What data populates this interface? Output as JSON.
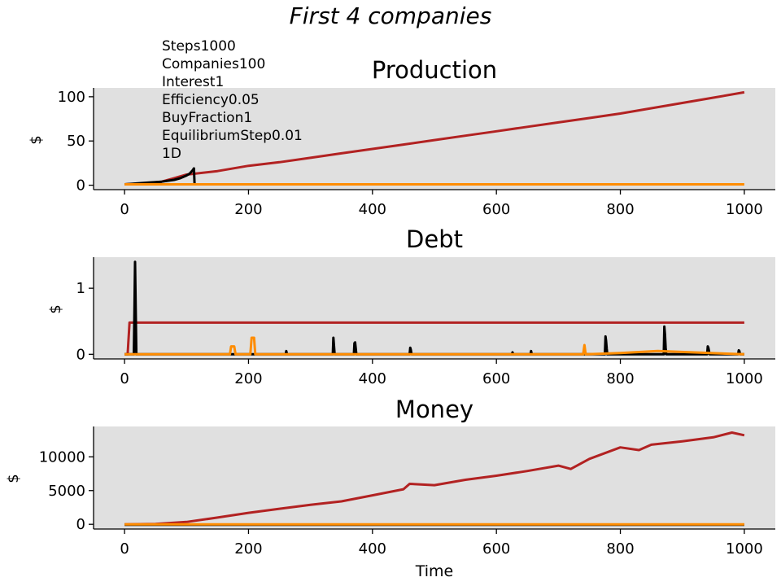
{
  "suptitle": "First 4 companies",
  "annotation_lines": [
    "Steps1000",
    "Companies100",
    "Interest1",
    "Efficiency0.05",
    "BuyFraction1",
    "EquilibriumStep0.01",
    "1D"
  ],
  "colors": {
    "background": "#e0e0e0",
    "series_red": "#b22222",
    "series_black": "#000000",
    "series_orange": "#ff8c00"
  },
  "chart_data": [
    {
      "type": "line",
      "title": "Production",
      "ylabel": "$",
      "xlabel": "",
      "xlim": [
        -50,
        1050
      ],
      "ylim": [
        -5,
        110
      ],
      "xticks": [
        0,
        200,
        400,
        600,
        800,
        1000
      ],
      "xtick_labels": [
        "0",
        "200",
        "400",
        "600",
        "800",
        "1000"
      ],
      "yticks": [
        0,
        50,
        100
      ],
      "ytick_labels": [
        "0",
        "50",
        "100"
      ],
      "grid": false,
      "series": [
        {
          "color": "#b22222",
          "x": [
            0,
            30,
            60,
            80,
            100,
            150,
            200,
            250,
            300,
            350,
            400,
            450,
            500,
            550,
            600,
            650,
            700,
            750,
            800,
            850,
            900,
            950,
            1000
          ],
          "y": [
            1,
            2,
            4,
            8,
            12,
            16,
            22,
            26,
            31,
            36,
            41,
            46,
            51,
            56,
            61,
            66,
            71,
            76,
            81,
            87,
            93,
            99,
            105
          ]
        },
        {
          "color": "#000000",
          "x": [
            0,
            20,
            40,
            60,
            80,
            90,
            100,
            105,
            110,
            112,
            113
          ],
          "y": [
            1,
            2,
            3,
            4,
            6,
            8,
            11,
            13,
            17,
            19,
            0
          ]
        },
        {
          "color": "#ff8c00",
          "x": [
            0,
            100,
            200,
            300,
            400,
            500,
            600,
            700,
            800,
            900,
            1000
          ],
          "y": [
            1,
            1,
            1,
            1,
            1,
            1,
            1,
            1,
            1,
            1,
            1
          ]
        }
      ]
    },
    {
      "type": "line",
      "title": "Debt",
      "ylabel": "$",
      "xlabel": "",
      "xlim": [
        -50,
        1050
      ],
      "ylim": [
        -0.07,
        1.47
      ],
      "xticks": [
        0,
        200,
        400,
        600,
        800,
        1000
      ],
      "xtick_labels": [
        "0",
        "200",
        "400",
        "600",
        "800",
        "1000"
      ],
      "yticks": [
        0,
        1
      ],
      "ytick_labels": [
        "0",
        "1"
      ],
      "grid": false,
      "series": [
        {
          "color": "#b22222",
          "x": [
            0,
            5,
            8,
            1000
          ],
          "y": [
            0,
            0,
            0.48,
            0.48
          ]
        },
        {
          "color": "#000000",
          "x": [
            0,
            15,
            16,
            17,
            18,
            19,
            260,
            261,
            262,
            336,
            337,
            338,
            339,
            370,
            371,
            372,
            373,
            374,
            460,
            461,
            462,
            463,
            625,
            626,
            627,
            655,
            656,
            657,
            775,
            776,
            777,
            778,
            779,
            870,
            871,
            872,
            873,
            874,
            940,
            941,
            942,
            943,
            944,
            990,
            991,
            992,
            993,
            1000
          ],
          "y": [
            0,
            0,
            0.7,
            1.4,
            0.7,
            0,
            0,
            0.05,
            0,
            0,
            0.25,
            0.12,
            0,
            0,
            0.17,
            0.18,
            0.1,
            0,
            0,
            0.1,
            0.06,
            0,
            0,
            0.03,
            0,
            0,
            0.05,
            0,
            0,
            0.27,
            0.2,
            0.08,
            0,
            0,
            0.42,
            0.3,
            0.1,
            0,
            0,
            0.12,
            0.1,
            0.05,
            0,
            0,
            0.06,
            0.05,
            0,
            0
          ]
        },
        {
          "color": "#ff8c00",
          "x": [
            0,
            170,
            172,
            177,
            179,
            203,
            205,
            209,
            211,
            740,
            742,
            744,
            746,
            800,
            860,
            1000
          ],
          "y": [
            0,
            0,
            0.12,
            0.12,
            0,
            0,
            0.25,
            0.25,
            0,
            0,
            0.14,
            0,
            0,
            0.02,
            0.05,
            0
          ]
        }
      ]
    },
    {
      "type": "line",
      "title": "Money",
      "ylabel": "$",
      "xlabel": "Time",
      "xlim": [
        -50,
        1050
      ],
      "ylim": [
        -700,
        14500
      ],
      "xticks": [
        0,
        200,
        400,
        600,
        800,
        1000
      ],
      "xtick_labels": [
        "0",
        "200",
        "400",
        "600",
        "800",
        "1000"
      ],
      "yticks": [
        0,
        5000,
        10000
      ],
      "ytick_labels": [
        "0",
        "5000",
        "10000"
      ],
      "grid": false,
      "series": [
        {
          "color": "#b22222",
          "x": [
            0,
            50,
            100,
            150,
            200,
            250,
            300,
            350,
            400,
            450,
            460,
            500,
            550,
            600,
            650,
            700,
            720,
            750,
            800,
            830,
            850,
            900,
            950,
            980,
            1000
          ],
          "y": [
            0,
            50,
            350,
            1000,
            1700,
            2300,
            2900,
            3400,
            4300,
            5200,
            6000,
            5800,
            6600,
            7200,
            7900,
            8700,
            8200,
            9700,
            11400,
            11000,
            11800,
            12300,
            12900,
            13600,
            13200
          ]
        },
        {
          "color": "#000000",
          "x": [
            0,
            1000
          ],
          "y": [
            -60,
            -60
          ]
        },
        {
          "color": "#ff8c00",
          "x": [
            0,
            1000
          ],
          "y": [
            0,
            0
          ]
        }
      ]
    }
  ]
}
